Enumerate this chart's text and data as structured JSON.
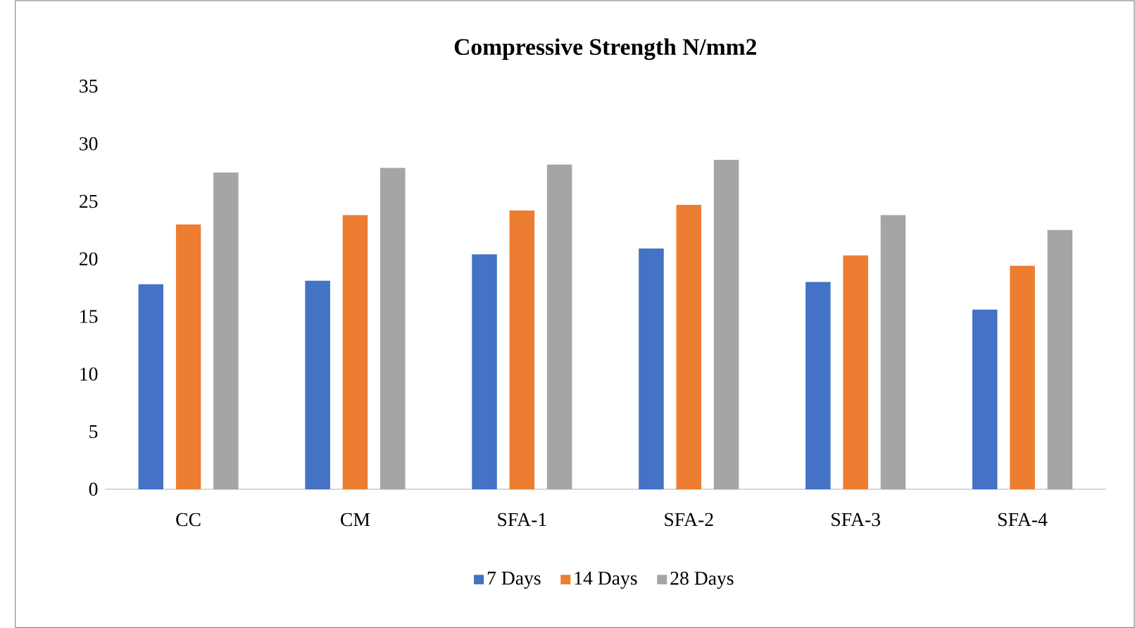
{
  "chart_data": {
    "type": "bar",
    "title": "Compressive Strength N/mm2",
    "categories": [
      "CC",
      "CM",
      "SFA-1",
      "SFA-2",
      "SFA-3",
      "SFA-4"
    ],
    "series": [
      {
        "name": "7 Days",
        "color": "#4472c4",
        "values": [
          17.8,
          18.1,
          20.4,
          20.9,
          18.0,
          15.6
        ]
      },
      {
        "name": "14 Days",
        "color": "#ed7d31",
        "values": [
          23.0,
          23.8,
          24.2,
          24.7,
          20.3,
          19.4
        ]
      },
      {
        "name": "28 Days",
        "color": "#a5a5a5",
        "values": [
          27.5,
          27.9,
          28.2,
          28.6,
          23.8,
          22.5
        ]
      }
    ],
    "ylim": [
      0,
      35
    ],
    "yticks": [
      0,
      5,
      10,
      15,
      20,
      25,
      30,
      35
    ],
    "grid": false,
    "legend": "bottom"
  }
}
